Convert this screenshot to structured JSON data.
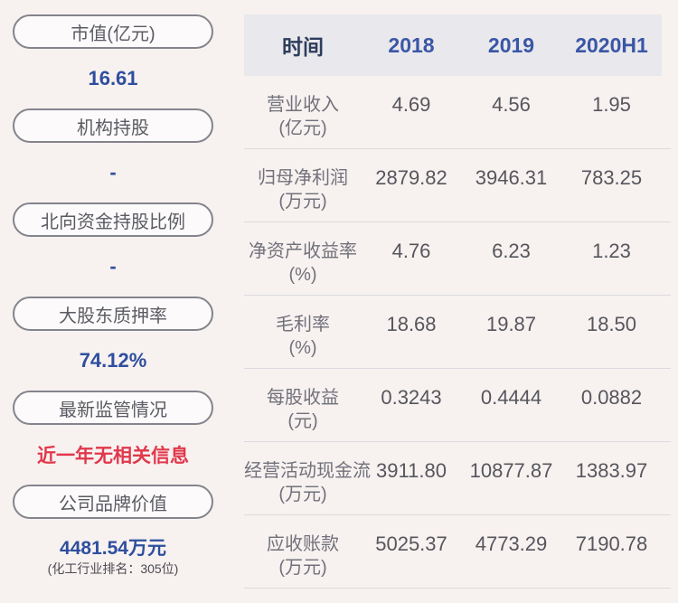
{
  "colors": {
    "background": "#f7f1f0",
    "pill_border": "#84848c",
    "pill_text": "#5b5b63",
    "value_blue": "#2f4f9e",
    "alert_red": "#e1374a",
    "header_bg": "#e9e8ec",
    "header_time_text": "#2e3d5c",
    "header_year_text": "#3a56a6",
    "row_label_text": "#71717a",
    "row_value_text": "#56565c",
    "divider": "#dcdade"
  },
  "sidebar": {
    "items": [
      {
        "label": "市值(亿元)",
        "value": "16.61"
      },
      {
        "label": "机构持股",
        "value": "-"
      },
      {
        "label": "北向资金持股比例",
        "value": "-"
      },
      {
        "label": "大股东质押率",
        "value": "74.12%"
      },
      {
        "label": "最新监管情况",
        "value": "近一年无相关信息"
      },
      {
        "label": "公司品牌价值",
        "value": "4481.54万元",
        "note": "(化工行业排名：305位)"
      }
    ]
  },
  "table": {
    "columns": [
      "时间",
      "2018",
      "2019",
      "2020H1"
    ],
    "rows": [
      {
        "name": "营业收入",
        "unit": "(亿元)",
        "values": [
          "4.69",
          "4.56",
          "1.95"
        ]
      },
      {
        "name": "归母净利润",
        "unit": "(万元)",
        "values": [
          "2879.82",
          "3946.31",
          "783.25"
        ]
      },
      {
        "name": "净资产收益率",
        "unit": "(%)",
        "values": [
          "4.76",
          "6.23",
          "1.23"
        ]
      },
      {
        "name": "毛利率",
        "unit": "(%)",
        "values": [
          "18.68",
          "19.87",
          "18.50"
        ]
      },
      {
        "name": "每股收益",
        "unit": "(元)",
        "values": [
          "0.3243",
          "0.4444",
          "0.0882"
        ]
      },
      {
        "name": "经营活动现金流",
        "unit": "(万元)",
        "values": [
          "3911.80",
          "10877.87",
          "1383.97"
        ]
      },
      {
        "name": "应收账款",
        "unit": "(万元)",
        "values": [
          "5025.37",
          "4773.29",
          "7190.78"
        ]
      }
    ]
  },
  "chart_data": {
    "type": "table",
    "title": "",
    "columns": [
      "时间",
      "2018",
      "2019",
      "2020H1"
    ],
    "rows": [
      {
        "metric": "营业收入(亿元)",
        "values": [
          4.69,
          4.56,
          1.95
        ]
      },
      {
        "metric": "归母净利润(万元)",
        "values": [
          2879.82,
          3946.31,
          783.25
        ]
      },
      {
        "metric": "净资产收益率(%)",
        "values": [
          4.76,
          6.23,
          1.23
        ]
      },
      {
        "metric": "毛利率(%)",
        "values": [
          18.68,
          19.87,
          18.5
        ]
      },
      {
        "metric": "每股收益(元)",
        "values": [
          0.3243,
          0.4444,
          0.0882
        ]
      },
      {
        "metric": "经营活动现金流(万元)",
        "values": [
          3911.8,
          10877.87,
          1383.97
        ]
      },
      {
        "metric": "应收账款(万元)",
        "values": [
          5025.37,
          4773.29,
          7190.78
        ]
      }
    ],
    "side_stats": {
      "市值(亿元)": 16.61,
      "机构持股": null,
      "北向资金持股比例": null,
      "大股东质押率": "74.12%",
      "最新监管情况": "近一年无相关信息",
      "公司品牌价值": "4481.54万元",
      "公司品牌价值排名": "化工行业排名：305位"
    }
  }
}
